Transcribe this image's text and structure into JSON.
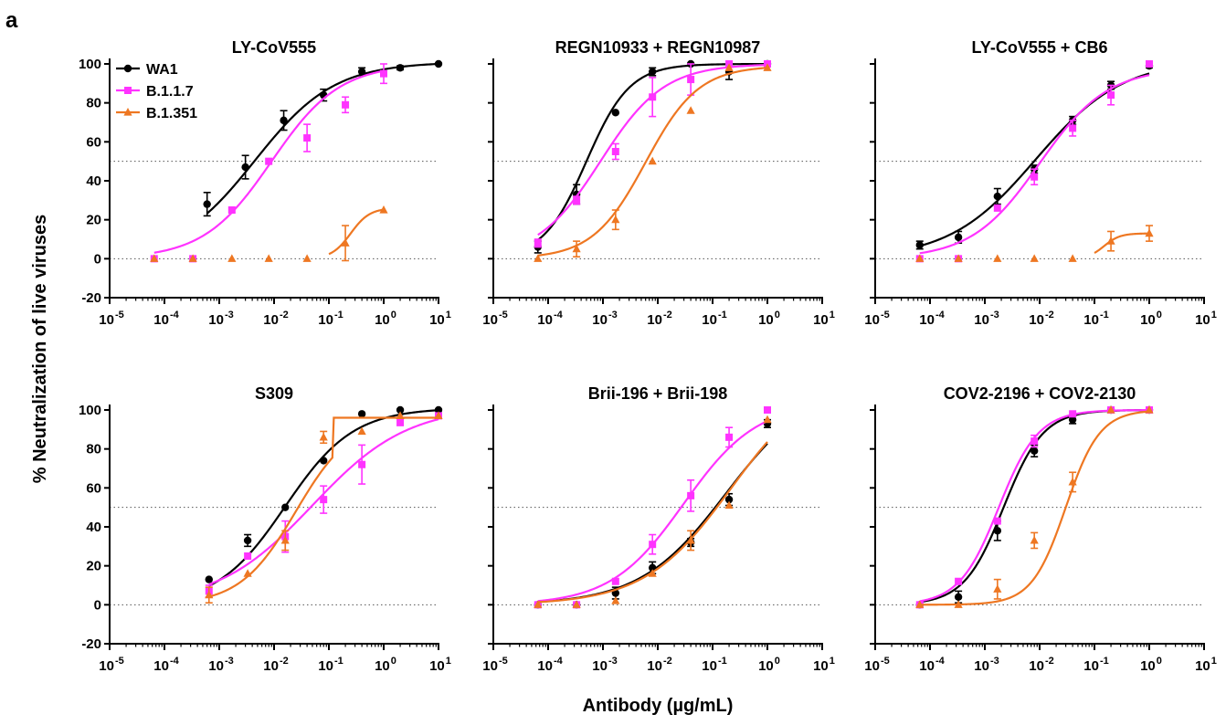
{
  "figure": {
    "panel_letter": "a",
    "ylabel": "% Neutralization of live viruses",
    "xlabel": "Antibody (µg/mL)",
    "colors": {
      "WA1": "#000000",
      "B.1.1.7": "#ff33ff",
      "B.1.351": "#ee7722",
      "reference_line": "#555555"
    },
    "legend": [
      {
        "name": "WA1",
        "marker": "circle"
      },
      {
        "name": "B.1.1.7",
        "marker": "square"
      },
      {
        "name": "B.1.351",
        "marker": "triangle"
      }
    ]
  },
  "chart_data": [
    {
      "type": "line",
      "title": "LY-CoV555",
      "xscale": "log",
      "xlim": [
        1e-05,
        10
      ],
      "ylim": [
        -20,
        100
      ],
      "x_tick_exponents": [
        -5,
        -4,
        -3,
        -2,
        -1,
        0,
        1
      ],
      "y_ticks": [
        -20,
        0,
        20,
        40,
        60,
        80,
        100
      ],
      "reference_lines": [
        0,
        50
      ],
      "series": [
        {
          "name": "WA1",
          "points": [
            [
              0.0006,
              28,
              6
            ],
            [
              0.003,
              47,
              6
            ],
            [
              0.015,
              71,
              5
            ],
            [
              0.08,
              84,
              3
            ],
            [
              0.4,
              96,
              2
            ],
            [
              2,
              98,
              1
            ],
            [
              10,
              100,
              0
            ]
          ],
          "fit": {
            "bottom": 0,
            "top": 101,
            "ec50": 0.0045,
            "hill": 0.6
          }
        },
        {
          "name": "B.1.1.7",
          "points": [
            [
              6.5e-05,
              0,
              0
            ],
            [
              0.00033,
              0,
              0
            ],
            [
              0.0017,
              25,
              0
            ],
            [
              0.008,
              50,
              0
            ],
            [
              0.04,
              62,
              7
            ],
            [
              0.2,
              79,
              4
            ],
            [
              1,
              95,
              5
            ]
          ],
          "fit": {
            "bottom": 0,
            "top": 100,
            "ec50": 0.009,
            "hill": 0.7
          }
        },
        {
          "name": "B.1.351",
          "points": [
            [
              6.5e-05,
              0,
              0
            ],
            [
              0.00033,
              0,
              0
            ],
            [
              0.0017,
              0,
              0
            ],
            [
              0.008,
              0,
              0
            ],
            [
              0.04,
              0,
              0
            ],
            [
              0.2,
              8,
              9
            ],
            [
              1,
              25,
              0
            ]
          ],
          "fit": {
            "bottom": 0,
            "top": 26,
            "ec50": 0.25,
            "hill": 2.5,
            "x_from": 0.1,
            "x_to": 1
          }
        }
      ]
    },
    {
      "type": "line",
      "title": "REGN10933 + REGN10987",
      "xscale": "log",
      "xlim": [
        1e-05,
        10
      ],
      "ylim": [
        -20,
        100
      ],
      "x_tick_exponents": [
        -5,
        -4,
        -3,
        -2,
        -1,
        0,
        1
      ],
      "y_ticks": [
        -20,
        0,
        20,
        40,
        60,
        80,
        100
      ],
      "reference_lines": [
        0,
        50
      ],
      "series": [
        {
          "name": "WA1",
          "points": [
            [
              6.5e-05,
              6,
              3
            ],
            [
              0.00033,
              33,
              5
            ],
            [
              0.0017,
              75,
              0
            ],
            [
              0.008,
              96,
              2
            ],
            [
              0.04,
              100,
              0
            ],
            [
              0.2,
              96,
              4
            ],
            [
              1,
              100,
              1
            ]
          ],
          "fit": {
            "bottom": 0,
            "top": 100,
            "ec50": 0.0005,
            "hill": 1.1
          }
        },
        {
          "name": "B.1.1.7",
          "points": [
            [
              6.5e-05,
              8,
              2
            ],
            [
              0.00033,
              30,
              2
            ],
            [
              0.0017,
              55,
              4
            ],
            [
              0.008,
              83,
              10
            ],
            [
              0.04,
              92,
              8
            ],
            [
              0.2,
              100,
              0
            ],
            [
              1,
              100,
              0
            ]
          ],
          "fit": {
            "bottom": 0,
            "top": 100,
            "ec50": 0.0009,
            "hill": 0.75
          }
        },
        {
          "name": "B.1.351",
          "points": [
            [
              6.5e-05,
              0,
              0
            ],
            [
              0.00033,
              5,
              4
            ],
            [
              0.0017,
              20,
              5
            ],
            [
              0.008,
              50,
              0
            ],
            [
              0.04,
              76,
              0
            ],
            [
              0.2,
              98,
              0
            ],
            [
              1,
              98,
              0
            ]
          ],
          "fit": {
            "bottom": 0,
            "top": 99,
            "ec50": 0.006,
            "hill": 0.9
          }
        }
      ]
    },
    {
      "type": "line",
      "title": "LY-CoV555 + CB6",
      "xscale": "log",
      "xlim": [
        1e-05,
        10
      ],
      "ylim": [
        -20,
        100
      ],
      "x_tick_exponents": [
        -5,
        -4,
        -3,
        -2,
        -1,
        0,
        1
      ],
      "y_ticks": [
        -20,
        0,
        20,
        40,
        60,
        80,
        100
      ],
      "reference_lines": [
        0,
        50
      ],
      "series": [
        {
          "name": "WA1",
          "points": [
            [
              6.5e-05,
              7,
              2
            ],
            [
              0.00033,
              11,
              3
            ],
            [
              0.0017,
              32,
              4
            ],
            [
              0.008,
              46,
              2
            ],
            [
              0.04,
              71,
              2
            ],
            [
              0.2,
              89,
              2
            ],
            [
              1,
              99,
              1
            ]
          ],
          "fit": {
            "bottom": 0,
            "top": 102,
            "ec50": 0.0085,
            "hill": 0.55
          }
        },
        {
          "name": "B.1.1.7",
          "points": [
            [
              6.5e-05,
              0,
              0
            ],
            [
              0.00033,
              0,
              0
            ],
            [
              0.0017,
              26,
              0
            ],
            [
              0.008,
              42,
              4
            ],
            [
              0.04,
              67,
              4
            ],
            [
              0.2,
              84,
              5
            ],
            [
              1,
              100,
              0
            ]
          ],
          "fit": {
            "bottom": 0,
            "top": 98,
            "ec50": 0.01,
            "hill": 0.7
          }
        },
        {
          "name": "B.1.351",
          "points": [
            [
              6.5e-05,
              0,
              0
            ],
            [
              0.00033,
              0,
              0
            ],
            [
              0.0017,
              0,
              0
            ],
            [
              0.008,
              0,
              0
            ],
            [
              0.04,
              0,
              0
            ],
            [
              0.2,
              9,
              5
            ],
            [
              1,
              13,
              4
            ]
          ],
          "fit": {
            "bottom": 0,
            "top": 13,
            "ec50": 0.15,
            "hill": 3,
            "x_from": 0.1,
            "x_to": 1
          }
        }
      ]
    },
    {
      "type": "line",
      "title": "S309",
      "xscale": "log",
      "xlim": [
        1e-05,
        10
      ],
      "ylim": [
        -20,
        100
      ],
      "x_tick_exponents": [
        -5,
        -4,
        -3,
        -2,
        -1,
        0,
        1
      ],
      "y_ticks": [
        -20,
        0,
        20,
        40,
        60,
        80,
        100
      ],
      "reference_lines": [
        0,
        50
      ],
      "series": [
        {
          "name": "WA1",
          "points": [
            [
              0.00065,
              13,
              0
            ],
            [
              0.0033,
              33,
              3
            ],
            [
              0.016,
              50,
              0
            ],
            [
              0.08,
              74,
              0
            ],
            [
              0.4,
              98,
              0
            ],
            [
              2,
              100,
              0
            ],
            [
              10,
              100,
              0
            ]
          ],
          "fit": {
            "bottom": 0,
            "top": 101,
            "ec50": 0.016,
            "hill": 0.7
          }
        },
        {
          "name": "B.1.1.7",
          "points": [
            [
              0.00065,
              7,
              3
            ],
            [
              0.0033,
              25,
              0
            ],
            [
              0.016,
              35,
              8
            ],
            [
              0.08,
              54,
              7
            ],
            [
              0.4,
              72,
              10
            ],
            [
              2,
              94,
              2
            ],
            [
              10,
              97,
              0
            ]
          ],
          "fit": {
            "bottom": 0,
            "top": 102,
            "ec50": 0.05,
            "hill": 0.5
          }
        },
        {
          "name": "B.1.351",
          "points": [
            [
              0.00065,
              5,
              4
            ],
            [
              0.0033,
              16,
              0
            ],
            [
              0.016,
              33,
              5
            ],
            [
              0.08,
              86,
              3
            ],
            [
              0.4,
              89,
              0
            ],
            [
              2,
              97,
              0
            ],
            [
              10,
              97,
              0
            ]
          ],
          "fit": {
            "bottom": 0,
            "top": 96,
            "ec50": 0.025,
            "hill": 0.85,
            "plateau_from": 0.12
          }
        }
      ]
    },
    {
      "type": "line",
      "title": "Brii-196 + Brii-198",
      "xscale": "log",
      "xlim": [
        1e-05,
        10
      ],
      "ylim": [
        -20,
        100
      ],
      "x_tick_exponents": [
        -5,
        -4,
        -3,
        -2,
        -1,
        0,
        1
      ],
      "y_ticks": [
        -20,
        0,
        20,
        40,
        60,
        80,
        100
      ],
      "reference_lines": [
        0,
        50
      ],
      "series": [
        {
          "name": "WA1",
          "points": [
            [
              6.5e-05,
              0,
              0
            ],
            [
              0.00033,
              0,
              0
            ],
            [
              0.0017,
              6,
              3
            ],
            [
              0.008,
              19,
              3
            ],
            [
              0.04,
              32,
              2
            ],
            [
              0.2,
              54,
              3
            ],
            [
              1,
              93,
              2
            ]
          ],
          "fit": {
            "bottom": 0,
            "top": 115,
            "ec50": 0.18,
            "hill": 0.55
          }
        },
        {
          "name": "B.1.1.7",
          "points": [
            [
              6.5e-05,
              0,
              0
            ],
            [
              0.00033,
              0,
              0
            ],
            [
              0.0017,
              12,
              0
            ],
            [
              0.008,
              31,
              5
            ],
            [
              0.04,
              56,
              8
            ],
            [
              0.2,
              86,
              5
            ],
            [
              1,
              100,
              0
            ]
          ],
          "fit": {
            "bottom": 0,
            "top": 104,
            "ec50": 0.03,
            "hill": 0.65
          }
        },
        {
          "name": "B.1.351",
          "points": [
            [
              6.5e-05,
              0,
              0
            ],
            [
              0.00033,
              0,
              0
            ],
            [
              0.0017,
              2,
              0
            ],
            [
              0.008,
              16,
              0
            ],
            [
              0.04,
              33,
              5
            ],
            [
              0.2,
              51,
              0
            ],
            [
              1,
              95,
              0
            ]
          ],
          "fit": {
            "bottom": 0,
            "top": 120,
            "ec50": 0.22,
            "hill": 0.55
          }
        }
      ]
    },
    {
      "type": "line",
      "title": "COV2-2196 + COV2-2130",
      "xscale": "log",
      "xlim": [
        1e-05,
        10
      ],
      "ylim": [
        -20,
        100
      ],
      "x_tick_exponents": [
        -5,
        -4,
        -3,
        -2,
        -1,
        0,
        1
      ],
      "y_ticks": [
        -20,
        0,
        20,
        40,
        60,
        80,
        100
      ],
      "reference_lines": [
        0,
        50
      ],
      "series": [
        {
          "name": "WA1",
          "points": [
            [
              6.5e-05,
              0,
              0
            ],
            [
              0.00033,
              4,
              3
            ],
            [
              0.0017,
              38,
              5
            ],
            [
              0.008,
              79,
              3
            ],
            [
              0.04,
              95,
              2
            ],
            [
              0.2,
              100,
              0
            ],
            [
              1,
              100,
              0
            ]
          ],
          "fit": {
            "bottom": 0,
            "top": 100,
            "ec50": 0.0022,
            "hill": 1.2
          }
        },
        {
          "name": "B.1.1.7",
          "points": [
            [
              6.5e-05,
              0,
              0
            ],
            [
              0.00033,
              12,
              0
            ],
            [
              0.0017,
              43,
              0
            ],
            [
              0.008,
              84,
              3
            ],
            [
              0.04,
              98,
              0
            ],
            [
              0.2,
              100,
              0
            ],
            [
              1,
              100,
              0
            ]
          ],
          "fit": {
            "bottom": 0,
            "top": 100,
            "ec50": 0.0018,
            "hill": 1.2
          }
        },
        {
          "name": "B.1.351",
          "points": [
            [
              6.5e-05,
              0,
              0
            ],
            [
              0.00033,
              0,
              0
            ],
            [
              0.0017,
              8,
              5
            ],
            [
              0.008,
              33,
              4
            ],
            [
              0.04,
              63,
              5
            ],
            [
              0.2,
              100,
              0
            ],
            [
              1,
              100,
              0
            ]
          ],
          "fit": {
            "bottom": 0,
            "top": 100,
            "ec50": 0.03,
            "hill": 1.4
          }
        }
      ]
    }
  ]
}
